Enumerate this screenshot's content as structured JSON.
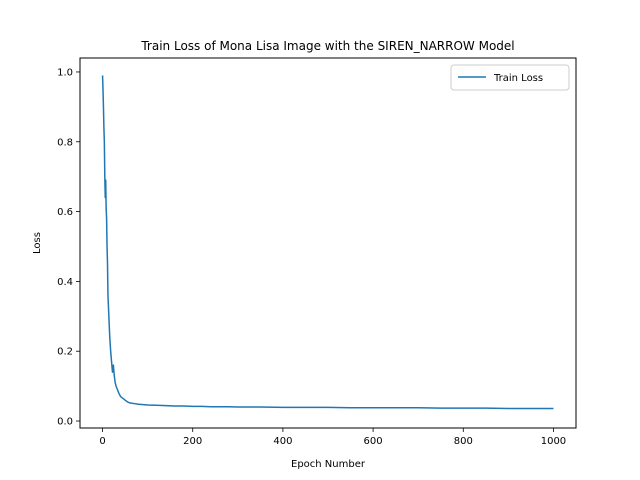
{
  "chart_data": {
    "type": "line",
    "title": "Train Loss of Mona Lisa Image with the SIREN_NARROW Model",
    "xlabel": "Epoch Number",
    "ylabel": "Loss",
    "xlim": [
      -50,
      1050
    ],
    "ylim": [
      -0.02,
      1.04
    ],
    "xticks": [
      0,
      200,
      400,
      600,
      800,
      1000
    ],
    "xtick_labels": [
      "0",
      "200",
      "400",
      "600",
      "800",
      "1000"
    ],
    "yticks": [
      0.0,
      0.2,
      0.4,
      0.6,
      0.8,
      1.0
    ],
    "ytick_labels": [
      "0.0",
      "0.2",
      "0.4",
      "0.6",
      "0.8",
      "1.0"
    ],
    "grid": false,
    "legend": {
      "position": "upper-right"
    },
    "series": [
      {
        "name": "Train Loss",
        "color": "#1f77b4",
        "x": [
          0,
          1,
          2,
          3,
          4,
          5,
          6,
          7,
          8,
          9,
          10,
          11,
          12,
          14,
          16,
          18,
          20,
          22,
          24,
          26,
          28,
          30,
          33,
          36,
          40,
          45,
          50,
          55,
          60,
          70,
          80,
          90,
          100,
          120,
          140,
          160,
          180,
          200,
          220,
          240,
          260,
          280,
          300,
          350,
          400,
          450,
          500,
          550,
          600,
          650,
          700,
          750,
          800,
          850,
          900,
          950,
          1000
        ],
        "y": [
          0.99,
          0.95,
          0.9,
          0.84,
          0.8,
          0.7,
          0.64,
          0.69,
          0.61,
          0.58,
          0.5,
          0.45,
          0.36,
          0.3,
          0.24,
          0.2,
          0.17,
          0.14,
          0.16,
          0.13,
          0.11,
          0.1,
          0.09,
          0.08,
          0.07,
          0.065,
          0.06,
          0.055,
          0.052,
          0.05,
          0.048,
          0.047,
          0.046,
          0.045,
          0.044,
          0.043,
          0.043,
          0.042,
          0.042,
          0.041,
          0.041,
          0.041,
          0.04,
          0.04,
          0.039,
          0.039,
          0.039,
          0.038,
          0.038,
          0.038,
          0.038,
          0.037,
          0.037,
          0.037,
          0.036,
          0.036,
          0.036
        ]
      }
    ]
  }
}
